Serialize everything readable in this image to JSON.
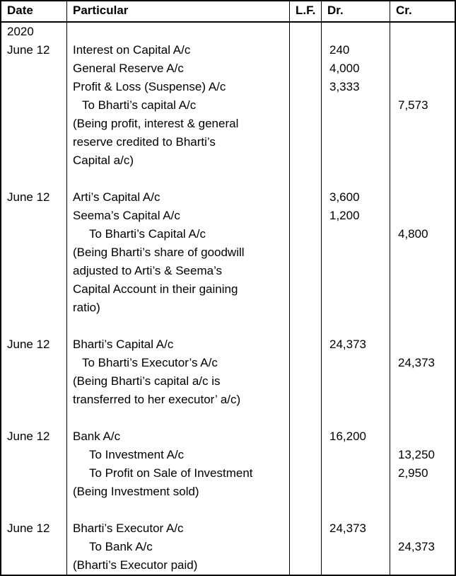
{
  "table": {
    "columns": [
      {
        "key": "date",
        "label": "Date"
      },
      {
        "key": "particular",
        "label": "Particular"
      },
      {
        "key": "lf",
        "label": "L.F."
      },
      {
        "key": "dr",
        "label": "Dr."
      },
      {
        "key": "cr",
        "label": "Cr."
      }
    ],
    "rows": [
      {
        "date": "2020",
        "particular": "",
        "lf": "",
        "dr": "",
        "cr": "",
        "indent": 0
      },
      {
        "date": "June 12",
        "particular": "Interest on Capital A/c",
        "lf": "",
        "dr": "240",
        "cr": "",
        "indent": 0
      },
      {
        "date": "",
        "particular": "General Reserve A/c",
        "lf": "",
        "dr": "4,000",
        "cr": "",
        "indent": 0
      },
      {
        "date": "",
        "particular": "Profit & Loss (Suspense) A/c",
        "lf": "",
        "dr": "3,333",
        "cr": "",
        "indent": 0
      },
      {
        "date": "",
        "particular": "To Bharti’s capital A/c",
        "lf": "",
        "dr": "",
        "cr": "7,573",
        "indent": 13
      },
      {
        "date": "",
        "particular": "(Being profit, interest & general",
        "lf": "",
        "dr": "",
        "cr": "",
        "indent": 0
      },
      {
        "date": "",
        "particular": "reserve credited to Bharti’s",
        "lf": "",
        "dr": "",
        "cr": "",
        "indent": 0
      },
      {
        "date": "",
        "particular": "Capital a/c)",
        "lf": "",
        "dr": "",
        "cr": "",
        "indent": 0
      },
      {
        "date": "",
        "particular": "",
        "lf": "",
        "dr": "",
        "cr": "",
        "indent": 0
      },
      {
        "date": "June 12",
        "particular": "Arti’s Capital A/c",
        "lf": "",
        "dr": "3,600",
        "cr": "",
        "indent": 0
      },
      {
        "date": "",
        "particular": "Seema’s Capital A/c",
        "lf": "",
        "dr": "1,200",
        "cr": "",
        "indent": 0
      },
      {
        "date": "",
        "particular": "To Bharti’s Capital A/c",
        "lf": "",
        "dr": "",
        "cr": "4,800",
        "indent": 23
      },
      {
        "date": "",
        "particular": "(Being Bharti’s share of goodwill",
        "lf": "",
        "dr": "",
        "cr": "",
        "indent": 0
      },
      {
        "date": "",
        "particular": "adjusted to Arti’s & Seema’s",
        "lf": "",
        "dr": "",
        "cr": "",
        "indent": 0
      },
      {
        "date": "",
        "particular": "Capital Account in their gaining",
        "lf": "",
        "dr": "",
        "cr": "",
        "indent": 0
      },
      {
        "date": "",
        "particular": "ratio)",
        "lf": "",
        "dr": "",
        "cr": "",
        "indent": 0
      },
      {
        "date": "",
        "particular": "",
        "lf": "",
        "dr": "",
        "cr": "",
        "indent": 0
      },
      {
        "date": "June 12",
        "particular": "Bharti’s Capital A/c",
        "lf": "",
        "dr": "24,373",
        "cr": "",
        "indent": 0
      },
      {
        "date": "",
        "particular": "To Bharti’s Executor’s A/c",
        "lf": "",
        "dr": "",
        "cr": "24,373",
        "indent": 13
      },
      {
        "date": "",
        "particular": "(Being Bharti’s capital a/c is",
        "lf": "",
        "dr": "",
        "cr": "",
        "indent": 0
      },
      {
        "date": "",
        "particular": "transferred to her executor’ a/c)",
        "lf": "",
        "dr": "",
        "cr": "",
        "indent": 0
      },
      {
        "date": "",
        "particular": "",
        "lf": "",
        "dr": "",
        "cr": "",
        "indent": 0
      },
      {
        "date": "June 12",
        "particular": "Bank A/c",
        "lf": "",
        "dr": "16,200",
        "cr": "",
        "indent": 0
      },
      {
        "date": "",
        "particular": "To Investment A/c",
        "lf": "",
        "dr": "",
        "cr": "13,250",
        "indent": 23
      },
      {
        "date": "",
        "particular": "To Profit on Sale of Investment",
        "lf": "",
        "dr": "",
        "cr": "2,950",
        "indent": 23
      },
      {
        "date": "",
        "particular": "(Being Investment sold)",
        "lf": "",
        "dr": "",
        "cr": "",
        "indent": 0
      },
      {
        "date": "",
        "particular": "",
        "lf": "",
        "dr": "",
        "cr": "",
        "indent": 0
      },
      {
        "date": "June 12",
        "particular": "Bharti’s Executor A/c",
        "lf": "",
        "dr": "24,373",
        "cr": "",
        "indent": 0
      },
      {
        "date": "",
        "particular": "To Bank A/c",
        "lf": "",
        "dr": "",
        "cr": "24,373",
        "indent": 23
      },
      {
        "date": "",
        "particular": "(Bharti’s Executor paid)",
        "lf": "",
        "dr": "",
        "cr": "",
        "indent": 0
      }
    ]
  }
}
